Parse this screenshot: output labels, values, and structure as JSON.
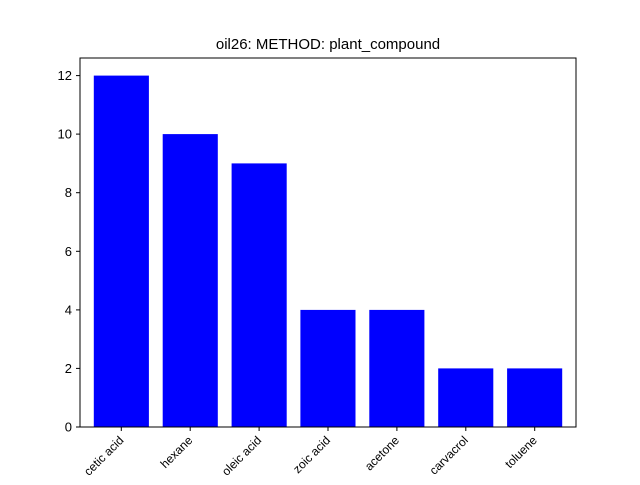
{
  "chart_data": {
    "type": "bar",
    "title": "oil26:   METHOD:   plant_compound",
    "xlabel": "",
    "ylabel": "",
    "categories": [
      "acetic acid",
      "hexane",
      "oleic acid",
      "benzoic acid",
      "acetone",
      "carvacrol",
      "toluene"
    ],
    "tick_labels_shown": [
      "cetic acid",
      "hexane",
      "oleic acid",
      "zoic acid",
      "acetone",
      "carvacrol",
      "toluene"
    ],
    "values": [
      12,
      10,
      9,
      4,
      4,
      2,
      2
    ],
    "ylim": [
      0,
      12.6
    ],
    "yticks": [
      "0",
      "2",
      "4",
      "6",
      "8",
      "10",
      "12"
    ],
    "grid": false,
    "bar_color": "#0000ff"
  }
}
